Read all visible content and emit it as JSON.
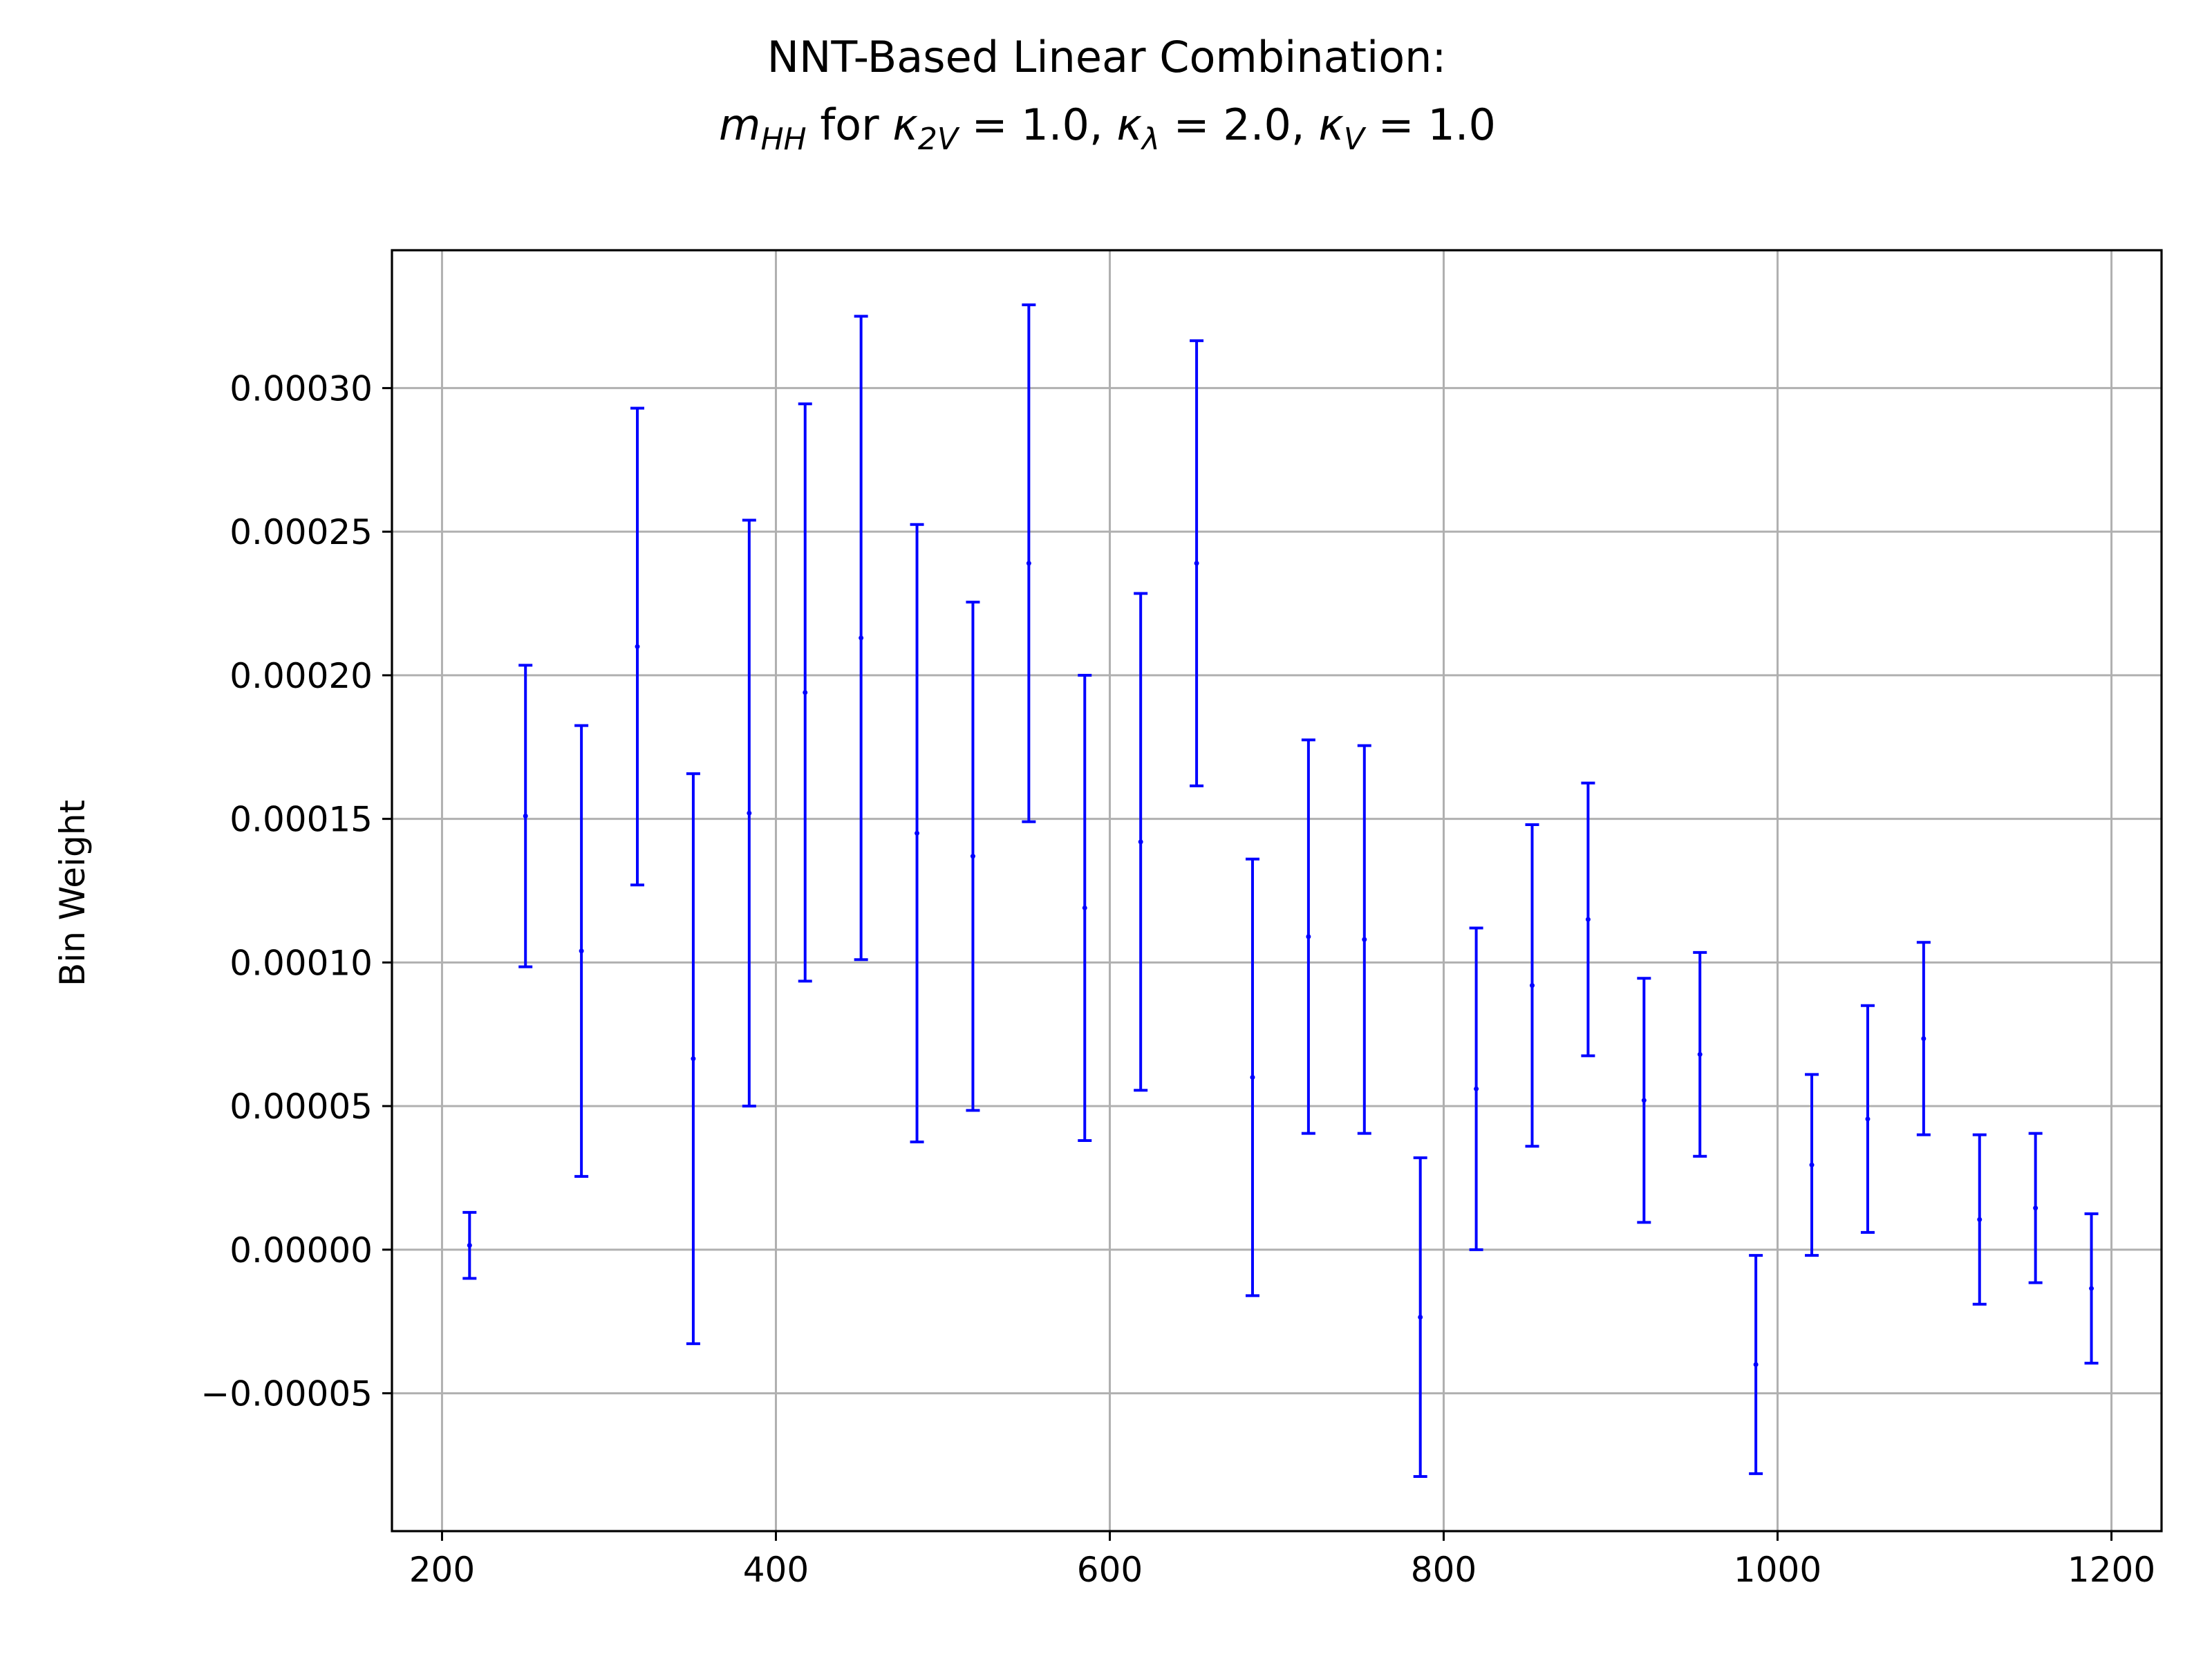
{
  "chart_data": {
    "type": "errorbar",
    "title_line1": "NNT-Based Linear Combination:",
    "title_line2": {
      "m": "m",
      "m_sub": "HH",
      "for": " for ",
      "k1": "κ",
      "k1_sub": "2V",
      "v1": " = 1.0, ",
      "k2": "κ",
      "k2_sub": "λ",
      "v2": " = 2.0, ",
      "k3": "κ",
      "k3_sub": "V",
      "v3": " = 1.0"
    },
    "xlabel": "",
    "ylabel": "Bin Weight",
    "xlim": [
      170,
      1230
    ],
    "ylim": [
      -9.8e-05,
      0.000348
    ],
    "x_ticks": [
      200,
      400,
      600,
      800,
      1000,
      1200
    ],
    "x_tick_labels": [
      "200",
      "400",
      "600",
      "800",
      "1000",
      "1200"
    ],
    "y_ticks": [
      -5e-05,
      0.0,
      5e-05,
      0.0001,
      0.00015,
      0.0002,
      0.00025,
      0.0003
    ],
    "y_tick_labels": [
      "−0.00005",
      "0.00000",
      "0.00005",
      "0.00010",
      "0.00015",
      "0.00020",
      "0.00025",
      "0.00030"
    ],
    "grid": true,
    "color": "#0000ff",
    "x": [
      216.5,
      250,
      283.5,
      317,
      350.5,
      384,
      417.5,
      451,
      484.5,
      518,
      551.5,
      585,
      618.5,
      652,
      685.5,
      719,
      752.5,
      786,
      819.5,
      853,
      886.5,
      920,
      953.5,
      987,
      1020.5,
      1054,
      1087.5,
      1121,
      1154.5,
      1188
    ],
    "y": [
      1.5e-06,
      0.000151,
      0.000104,
      0.00021,
      6.65e-05,
      0.000152,
      0.000194,
      0.000213,
      0.000145,
      0.000137,
      0.000239,
      0.000119,
      0.000142,
      0.000239,
      6e-05,
      0.000109,
      0.000108,
      -2.35e-05,
      5.6e-05,
      9.2e-05,
      0.000115,
      5.2e-05,
      6.8e-05,
      -4e-05,
      2.95e-05,
      4.55e-05,
      7.35e-05,
      1.05e-05,
      1.45e-05,
      -1.35e-05
    ],
    "yerr": [
      1.15e-05,
      5.25e-05,
      7.85e-05,
      8.3e-05,
      9.925e-05,
      0.000102,
      0.0001005,
      0.000112,
      0.0001075,
      8.85e-05,
      9e-05,
      8.1e-05,
      8.65e-05,
      7.75e-05,
      7.6e-05,
      6.85e-05,
      6.75e-05,
      5.55e-05,
      5.6e-05,
      5.6e-05,
      4.75e-05,
      4.25e-05,
      3.55e-05,
      3.8e-05,
      3.15e-05,
      3.95e-05,
      3.35e-05,
      2.95e-05,
      2.6e-05,
      2.6e-05
    ]
  }
}
